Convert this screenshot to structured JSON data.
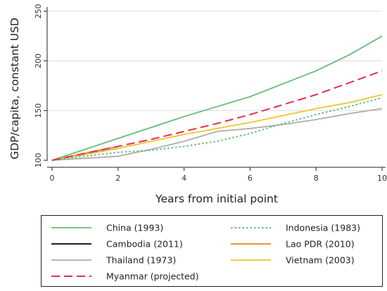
{
  "chart_data": {
    "type": "line",
    "title": "",
    "xlabel": "Years from initial point",
    "ylabel": "GDP/capita, constant USD",
    "xlim": [
      0,
      10
    ],
    "ylim": [
      100,
      250
    ],
    "x_ticks": [
      0,
      2,
      4,
      6,
      8,
      10
    ],
    "y_ticks": [
      100,
      150,
      200,
      250
    ],
    "grid": "horizontal",
    "legend_position": "bottom",
    "series": [
      {
        "name": "China (1993)",
        "color": "#66bb7a",
        "style": "solid",
        "x": [
          0,
          1,
          2,
          3,
          4,
          5,
          6,
          7,
          8,
          9,
          10
        ],
        "y": [
          100,
          111,
          122,
          133,
          144,
          154,
          164,
          177,
          190,
          206,
          225
        ]
      },
      {
        "name": "Indonesia (1983)",
        "color": "#66bb7a",
        "style": "dotted",
        "x": [
          0,
          1,
          2,
          3,
          4,
          5,
          6,
          7,
          8,
          9,
          10
        ],
        "y": [
          100,
          104,
          108,
          110,
          114,
          119,
          127,
          137,
          146,
          154,
          163
        ]
      },
      {
        "name": "Cambodia (2011)",
        "color": "#000000",
        "style": "solid",
        "x": [
          0,
          1,
          2
        ],
        "y": [
          100,
          106,
          112
        ]
      },
      {
        "name": "Lao PDR (2010)",
        "color": "#ef7d20",
        "style": "solid",
        "x": [
          0,
          1,
          2
        ],
        "y": [
          100,
          107,
          114
        ]
      },
      {
        "name": "Thailand (1973)",
        "color": "#b3aba8",
        "style": "solid",
        "x": [
          0,
          1,
          2,
          3,
          4,
          5,
          6,
          7,
          8,
          9,
          10
        ],
        "y": [
          100,
          102,
          104,
          111,
          119,
          129,
          132,
          136,
          141,
          147,
          152
        ]
      },
      {
        "name": "Vietnam (2003)",
        "color": "#efc42a",
        "style": "solid",
        "x": [
          0,
          1,
          2,
          3,
          4,
          5,
          6,
          7,
          8,
          9,
          10
        ],
        "y": [
          100,
          106,
          112,
          119,
          126,
          132,
          138,
          145,
          152,
          158,
          166
        ]
      },
      {
        "name": "Myanmar (projected)",
        "color": "#e0304f",
        "style": "dashed",
        "x": [
          0,
          1,
          2,
          3,
          4,
          5,
          6,
          7,
          8,
          9,
          10
        ],
        "y": [
          100,
          107,
          114,
          121,
          129,
          137,
          146,
          156,
          166,
          178,
          190
        ]
      }
    ]
  }
}
